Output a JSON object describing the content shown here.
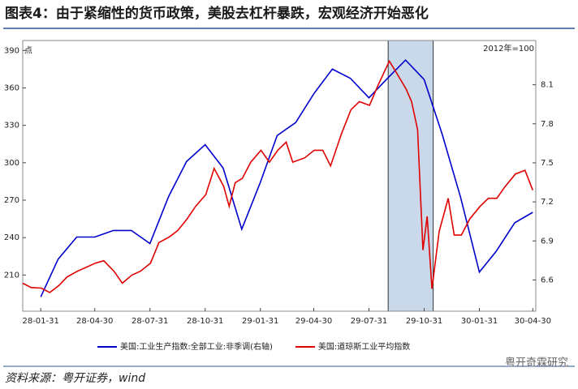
{
  "chart_data": {
    "type": "line",
    "title": "图表4：由于紧缩性的货币政策，美股去杠杆暴跌，宏观经济开始恶化",
    "y_unit": "点",
    "y2_unit": "2012年=100",
    "xlim": [
      "28-01-01",
      "30-05-05"
    ],
    "xticks": [
      "28-01-31",
      "28-04-30",
      "28-07-31",
      "28-10-31",
      "29-01-31",
      "29-04-30",
      "29-07-31",
      "29-10-31",
      "30-01-31",
      "30-04-30"
    ],
    "ylim": [
      181,
      398
    ],
    "yticks": [
      210,
      240,
      270,
      300,
      330,
      360,
      390
    ],
    "y2lim": [
      6.36,
      8.44
    ],
    "y2ticks": [
      6.6,
      6.9,
      7.2,
      7.5,
      7.8,
      8.1
    ],
    "shade": [
      "29-09-01",
      "29-11-15"
    ],
    "shade_color": "#c9d9ea",
    "legend": "bottom",
    "series": [
      {
        "name": "美国:工业生产指数:全部工业:非季调(右轴)",
        "color": "#0000cc",
        "axis": "y2",
        "x": [
          "28-01-31",
          "28-02-29",
          "28-03-31",
          "28-04-30",
          "28-05-31",
          "28-06-30",
          "28-07-31",
          "28-08-31",
          "28-09-30",
          "28-10-31",
          "28-11-30",
          "28-12-31",
          "29-01-31",
          "29-02-28",
          "29-03-31",
          "29-04-30",
          "29-05-31",
          "29-06-30",
          "29-07-31",
          "29-08-31",
          "29-09-30",
          "29-10-31",
          "29-11-30",
          "29-12-31",
          "30-01-31",
          "30-02-28",
          "30-03-31",
          "30-04-30"
        ],
        "values": [
          6.47,
          6.76,
          6.93,
          6.93,
          6.98,
          6.98,
          6.88,
          7.24,
          7.51,
          7.64,
          7.46,
          6.99,
          7.35,
          7.71,
          7.81,
          8.03,
          8.22,
          8.15,
          8.0,
          8.15,
          8.29,
          8.14,
          7.72,
          7.23,
          6.66,
          6.82,
          7.04,
          7.12
        ]
      },
      {
        "name": "美国:道琼斯工业平均指数",
        "color": "#e00000",
        "x": [
          "28-01-01",
          "28-01-15",
          "28-02-01",
          "28-02-15",
          "28-03-01",
          "28-03-15",
          "28-04-01",
          "28-04-15",
          "28-05-01",
          "28-05-15",
          "28-06-01",
          "28-06-15",
          "28-07-01",
          "28-07-15",
          "28-08-01",
          "28-08-15",
          "28-09-01",
          "28-09-15",
          "28-10-01",
          "28-10-15",
          "28-11-01",
          "28-11-15",
          "28-12-01",
          "28-12-10",
          "28-12-20",
          "29-01-01",
          "29-01-15",
          "29-02-01",
          "29-02-15",
          "29-03-01",
          "29-03-15",
          "29-03-26",
          "29-04-15",
          "29-05-01",
          "29-05-15",
          "29-05-28",
          "29-06-15",
          "29-07-01",
          "29-07-15",
          "29-08-01",
          "29-08-15",
          "29-09-03",
          "29-09-15",
          "29-10-01",
          "29-10-10",
          "29-10-20",
          "29-10-29",
          "29-11-05",
          "29-11-13",
          "29-11-25",
          "29-12-10",
          "29-12-20",
          "30-01-01",
          "30-01-15",
          "30-02-01",
          "30-02-15",
          "30-03-01",
          "30-03-15",
          "30-04-01",
          "30-04-17",
          "30-04-30"
        ],
        "values": [
          203.4,
          200,
          199.5,
          196,
          201.5,
          208.5,
          213,
          216,
          219.5,
          221.5,
          213,
          203.5,
          210,
          213,
          219.5,
          236,
          240.5,
          245.5,
          255,
          265,
          274.5,
          295.5,
          281,
          265,
          284,
          287.5,
          300.5,
          310,
          300.5,
          310,
          316.5,
          300.5,
          304,
          310,
          310,
          297.5,
          323,
          342.5,
          349,
          346,
          362,
          381.5,
          372,
          359,
          349,
          326.5,
          230,
          257,
          199,
          245,
          271.5,
          242,
          242,
          255,
          265,
          271.5,
          271.5,
          281,
          291,
          294,
          278
        ]
      }
    ],
    "source": "资料来源：粤开证券，wind",
    "watermark": "粤开奇霖研究"
  }
}
